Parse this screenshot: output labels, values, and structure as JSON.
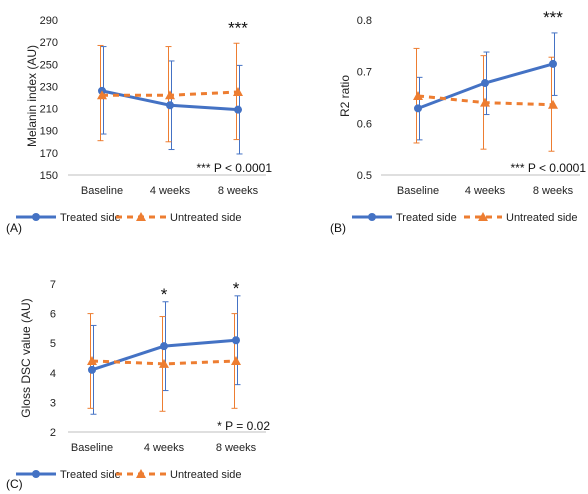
{
  "colors": {
    "treated": "#4472C4",
    "untreated": "#ED7D31",
    "axis": "#BFBFBF"
  },
  "chart_data": [
    {
      "type": "line",
      "panel_label": "(A)",
      "categories": [
        "Baseline",
        "4 weeks",
        "8 weeks"
      ],
      "ylabel": "Melanin index (AU)",
      "ylim": [
        150,
        290
      ],
      "yticks": [
        "150",
        "170",
        "190",
        "210",
        "230",
        "250",
        "270",
        "290"
      ],
      "series": [
        {
          "name": "Treated side",
          "values": [
            226,
            213,
            209
          ],
          "err_low": [
            187,
            173,
            169
          ],
          "err_high": [
            266,
            253,
            249
          ]
        },
        {
          "name": "Untreated side",
          "values": [
            222,
            222,
            225
          ],
          "err_low": [
            181,
            180,
            182
          ],
          "err_high": [
            267,
            266,
            269
          ]
        }
      ],
      "significance": [
        "",
        "",
        "***"
      ],
      "annotation": "*** P < 0.0001"
    },
    {
      "type": "line",
      "panel_label": "(B)",
      "categories": [
        "Baseline",
        "4 weeks",
        "8 weeks"
      ],
      "ylabel": "R2 ratio",
      "ylim": [
        0.5,
        0.8
      ],
      "yticks": [
        "0.5",
        "0.6",
        "0.7",
        "0.8"
      ],
      "series": [
        {
          "name": "Treated side",
          "values": [
            0.629,
            0.678,
            0.715
          ],
          "err_low": [
            0.568,
            0.617,
            0.654
          ],
          "err_high": [
            0.689,
            0.738,
            0.775
          ]
        },
        {
          "name": "Untreated side",
          "values": [
            0.653,
            0.64,
            0.636
          ],
          "err_low": [
            0.562,
            0.55,
            0.546
          ],
          "err_high": [
            0.745,
            0.731,
            0.728
          ]
        }
      ],
      "significance": [
        "",
        "",
        "***"
      ],
      "annotation": "*** P < 0.0001"
    },
    {
      "type": "line",
      "panel_label": "(C)",
      "categories": [
        "Baseline",
        "4 weeks",
        "8 weeks"
      ],
      "ylabel": "Gloss DSC value (AU)",
      "ylim": [
        2,
        7
      ],
      "yticks": [
        "2",
        "3",
        "4",
        "5",
        "6",
        "7"
      ],
      "series": [
        {
          "name": "Treated side",
          "values": [
            4.1,
            4.9,
            5.1
          ],
          "err_low": [
            2.6,
            3.4,
            3.6
          ],
          "err_high": [
            5.6,
            6.4,
            6.6
          ]
        },
        {
          "name": "Untreated side",
          "values": [
            4.4,
            4.3,
            4.4
          ],
          "err_low": [
            2.8,
            2.7,
            2.8
          ],
          "err_high": [
            6.0,
            5.9,
            6.0
          ]
        }
      ],
      "significance": [
        "",
        "*",
        "*"
      ],
      "annotation": "* P = 0.02"
    }
  ]
}
